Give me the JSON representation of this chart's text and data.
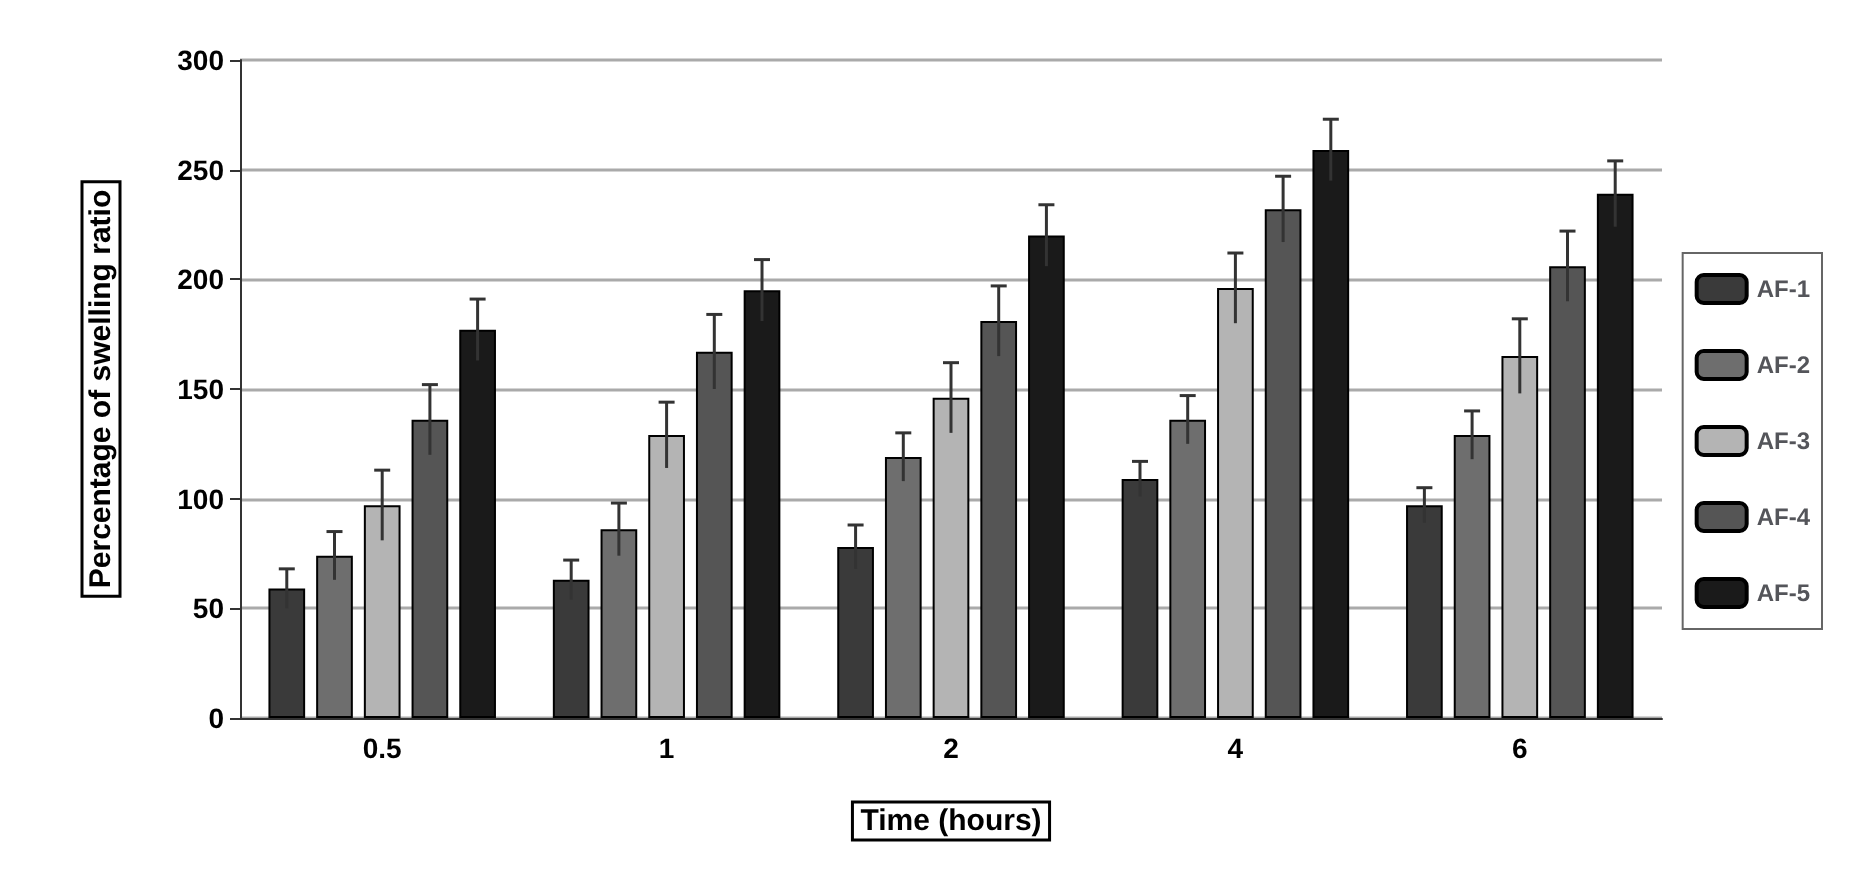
{
  "chart_data": {
    "type": "bar",
    "xlabel": "Time (hours)",
    "ylabel": "Percentage of swelling ratio",
    "categories": [
      "0.5",
      "1",
      "2",
      "4",
      "6"
    ],
    "series": [
      {
        "name": "AF-1",
        "color": "#3a3a3a",
        "values": [
          59,
          63,
          78,
          109,
          97
        ],
        "errors": [
          9,
          9,
          10,
          8,
          8
        ]
      },
      {
        "name": "AF-2",
        "color": "#6e6e6e",
        "values": [
          74,
          86,
          119,
          136,
          129
        ],
        "errors": [
          11,
          12,
          11,
          11,
          11
        ]
      },
      {
        "name": "AF-3",
        "color": "#b4b4b4",
        "values": [
          97,
          129,
          146,
          196,
          165
        ],
        "errors": [
          16,
          15,
          16,
          16,
          17
        ]
      },
      {
        "name": "AF-4",
        "color": "#555555",
        "values": [
          136,
          167,
          181,
          232,
          206
        ],
        "errors": [
          16,
          17,
          16,
          15,
          16
        ]
      },
      {
        "name": "AF-5",
        "color": "#1a1a1a",
        "values": [
          177,
          195,
          220,
          259,
          239
        ],
        "errors": [
          14,
          14,
          14,
          14,
          15
        ]
      }
    ],
    "ylim": [
      0,
      300
    ],
    "yticks": [
      0,
      50,
      100,
      150,
      200,
      250,
      300
    ],
    "grid": "y",
    "legend": "right"
  }
}
